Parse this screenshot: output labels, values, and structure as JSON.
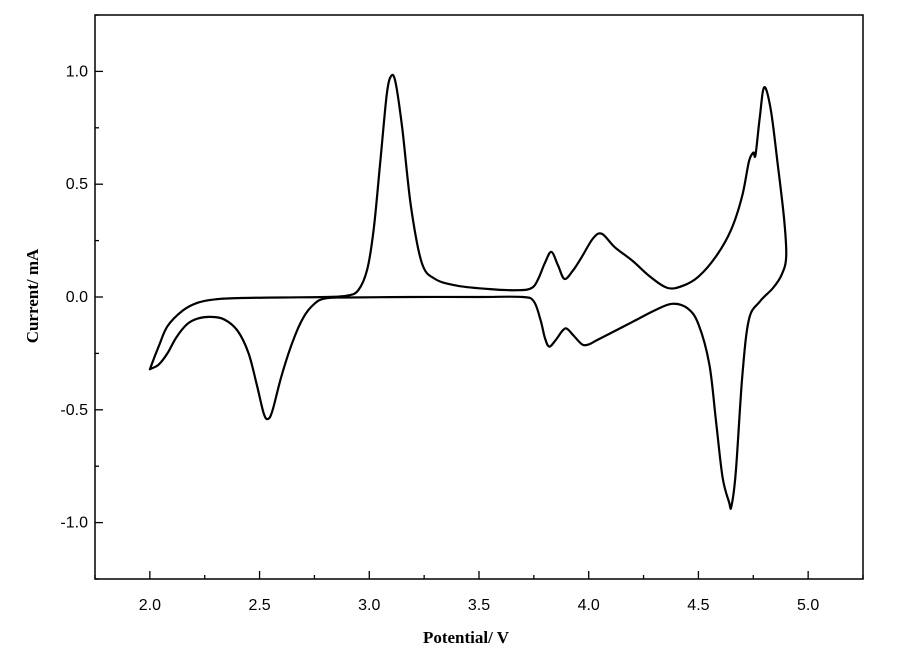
{
  "chart_data": {
    "type": "line",
    "title": "",
    "xlabel": "Potential/ V",
    "ylabel": "Current/ mA",
    "xlim": [
      1.75,
      5.25
    ],
    "ylim": [
      -1.25,
      1.25
    ],
    "grid": false,
    "legend": "none",
    "x_ticks": [
      2.0,
      2.5,
      3.0,
      3.5,
      4.0,
      4.5,
      5.0
    ],
    "x_tick_labels": [
      "2.0",
      "2.5",
      "3.0",
      "3.5",
      "4.0",
      "4.5",
      "5.0"
    ],
    "y_ticks": [
      1.0,
      0.5,
      0.0,
      -0.5,
      -1.0
    ],
    "y_tick_labels": [
      "1.0",
      "0.5",
      "0.0",
      "-0.5",
      "-1.0"
    ],
    "series": [
      {
        "color": "#000000",
        "points": [
          [
            2.0,
            -0.32
          ],
          [
            2.04,
            -0.3
          ],
          [
            2.08,
            -0.25
          ],
          [
            2.12,
            -0.18
          ],
          [
            2.17,
            -0.12
          ],
          [
            2.22,
            -0.095
          ],
          [
            2.28,
            -0.088
          ],
          [
            2.34,
            -0.1
          ],
          [
            2.4,
            -0.15
          ],
          [
            2.45,
            -0.25
          ],
          [
            2.49,
            -0.4
          ],
          [
            2.52,
            -0.52
          ],
          [
            2.54,
            -0.54
          ],
          [
            2.56,
            -0.5
          ],
          [
            2.6,
            -0.35
          ],
          [
            2.65,
            -0.2
          ],
          [
            2.7,
            -0.09
          ],
          [
            2.75,
            -0.03
          ],
          [
            2.8,
            -0.006
          ],
          [
            2.9,
            -0.002
          ],
          [
            3.2,
            0.0
          ],
          [
            3.5,
            0.0
          ],
          [
            3.7,
            0.0
          ],
          [
            3.75,
            -0.02
          ],
          [
            3.78,
            -0.1
          ],
          [
            3.8,
            -0.18
          ],
          [
            3.82,
            -0.22
          ],
          [
            3.85,
            -0.19
          ],
          [
            3.88,
            -0.15
          ],
          [
            3.9,
            -0.14
          ],
          [
            3.93,
            -0.17
          ],
          [
            3.97,
            -0.21
          ],
          [
            4.0,
            -0.21
          ],
          [
            4.04,
            -0.19
          ],
          [
            4.1,
            -0.16
          ],
          [
            4.2,
            -0.11
          ],
          [
            4.3,
            -0.06
          ],
          [
            4.38,
            -0.03
          ],
          [
            4.45,
            -0.05
          ],
          [
            4.5,
            -0.12
          ],
          [
            4.55,
            -0.3
          ],
          [
            4.58,
            -0.55
          ],
          [
            4.61,
            -0.8
          ],
          [
            4.64,
            -0.91
          ],
          [
            4.65,
            -0.93
          ],
          [
            4.67,
            -0.78
          ],
          [
            4.7,
            -0.35
          ],
          [
            4.73,
            -0.1
          ],
          [
            4.78,
            -0.02
          ],
          [
            4.84,
            0.04
          ],
          [
            4.88,
            0.1
          ],
          [
            4.9,
            0.18
          ],
          [
            4.89,
            0.35
          ],
          [
            4.86,
            0.6
          ],
          [
            4.83,
            0.83
          ],
          [
            4.8,
            0.93
          ],
          [
            4.78,
            0.8
          ],
          [
            4.76,
            0.63
          ],
          [
            4.75,
            0.64
          ],
          [
            4.73,
            0.6
          ],
          [
            4.7,
            0.45
          ],
          [
            4.65,
            0.3
          ],
          [
            4.58,
            0.18
          ],
          [
            4.5,
            0.09
          ],
          [
            4.43,
            0.05
          ],
          [
            4.36,
            0.04
          ],
          [
            4.28,
            0.09
          ],
          [
            4.2,
            0.16
          ],
          [
            4.12,
            0.22
          ],
          [
            4.06,
            0.28
          ],
          [
            4.02,
            0.26
          ],
          [
            3.97,
            0.18
          ],
          [
            3.93,
            0.12
          ],
          [
            3.89,
            0.08
          ],
          [
            3.86,
            0.14
          ],
          [
            3.83,
            0.2
          ],
          [
            3.8,
            0.15
          ],
          [
            3.77,
            0.08
          ],
          [
            3.74,
            0.04
          ],
          [
            3.68,
            0.03
          ],
          [
            3.55,
            0.035
          ],
          [
            3.4,
            0.05
          ],
          [
            3.3,
            0.08
          ],
          [
            3.24,
            0.15
          ],
          [
            3.19,
            0.4
          ],
          [
            3.15,
            0.75
          ],
          [
            3.12,
            0.95
          ],
          [
            3.1,
            0.98
          ],
          [
            3.08,
            0.9
          ],
          [
            3.05,
            0.6
          ],
          [
            3.02,
            0.3
          ],
          [
            2.99,
            0.12
          ],
          [
            2.95,
            0.03
          ],
          [
            2.9,
            0.006
          ],
          [
            2.8,
            0.0
          ],
          [
            2.6,
            -0.002
          ],
          [
            2.4,
            -0.005
          ],
          [
            2.3,
            -0.01
          ],
          [
            2.22,
            -0.025
          ],
          [
            2.15,
            -0.06
          ],
          [
            2.08,
            -0.13
          ],
          [
            2.04,
            -0.22
          ],
          [
            2.0,
            -0.32
          ]
        ]
      }
    ]
  }
}
